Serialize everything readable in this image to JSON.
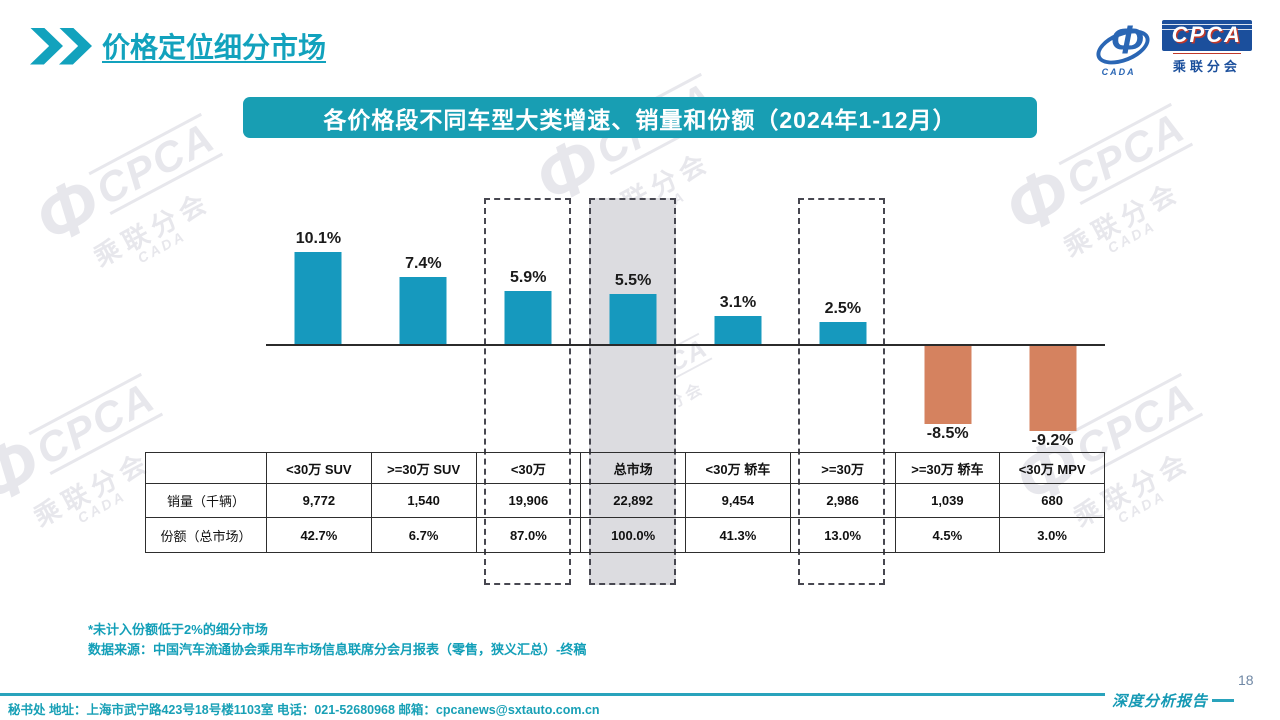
{
  "header": {
    "title": "价格定位细分市场"
  },
  "logo": {
    "cpca": "CPCA",
    "assoc": "乘联分会",
    "cada": "CADA",
    "glyph": "Φ"
  },
  "banner": {
    "text": "各价格段不同车型大类增速、销量和份额（2024年1-12月）"
  },
  "chart_data": {
    "type": "bar",
    "title": "各价格段不同车型大类增速、销量和份额（2024年1-12月）",
    "categories": [
      "<30万 SUV",
      ">=30万 SUV",
      "<30万",
      "总市场",
      "<30万 轿车",
      ">=30万",
      ">=30万 轿车",
      "<30万 MPV"
    ],
    "values": [
      10.1,
      7.4,
      5.9,
      5.5,
      3.1,
      2.5,
      -8.5,
      -9.2
    ],
    "labels": [
      "10.1%",
      "7.4%",
      "5.9%",
      "5.5%",
      "3.1%",
      "2.5%",
      "-8.5%",
      "-9.2%"
    ],
    "series": [
      {
        "name": "增速",
        "values": [
          10.1,
          7.4,
          5.9,
          5.5,
          3.1,
          2.5,
          -8.5,
          -9.2
        ]
      },
      {
        "name": "销量（千辆）",
        "values": [
          "9,772",
          "1,540",
          "19,906",
          "22,892",
          "9,454",
          "2,986",
          "1,039",
          "680"
        ]
      },
      {
        "name": "份额（总市场）",
        "values": [
          "42.7%",
          "6.7%",
          "87.0%",
          "100.0%",
          "41.3%",
          "13.0%",
          "4.5%",
          "3.0%"
        ]
      }
    ],
    "highlight_boxes": [
      {
        "category": "<30万",
        "index": 2,
        "filled": false
      },
      {
        "category": "总市场",
        "index": 3,
        "filled": true
      },
      {
        "category": ">=30万",
        "index": 5,
        "filled": false
      }
    ],
    "positive_color": "#1699be",
    "negative_color": "#d5825f",
    "baseline": 0,
    "ylim": [
      -10.5,
      11.5
    ],
    "grid": false,
    "legend": false
  },
  "table": {
    "corner": "",
    "columns": [
      "<30万 SUV",
      ">=30万 SUV",
      "<30万",
      "总市场",
      "<30万 轿车",
      ">=30万",
      ">=30万 轿车",
      "<30万 MPV"
    ],
    "rows": [
      {
        "label": "销量（千辆）",
        "values": [
          "9,772",
          "1,540",
          "19,906",
          "22,892",
          "9,454",
          "2,986",
          "1,039",
          "680"
        ]
      },
      {
        "label": "份额（总市场）",
        "values": [
          "42.7%",
          "6.7%",
          "87.0%",
          "100.0%",
          "41.3%",
          "13.0%",
          "4.5%",
          "3.0%"
        ]
      }
    ]
  },
  "footnotes": [
    "*未计入份额低于2%的细分市场",
    "数据来源：中国汽车流通协会乘用车市场信息联席分会月报表（零售，狭义汇总）-终稿"
  ],
  "footer": {
    "secretariat": "秘书处  地址：上海市武宁路423号18号楼1103室 电话：021-52680968   邮箱：cpcanews@sxtauto.com.cn",
    "report_label": "深度分析报告",
    "page_number": "18"
  },
  "watermark": {
    "glyph": "Φ",
    "line1": "CPCA",
    "line2": "乘联分会",
    "line3": "CADA"
  }
}
